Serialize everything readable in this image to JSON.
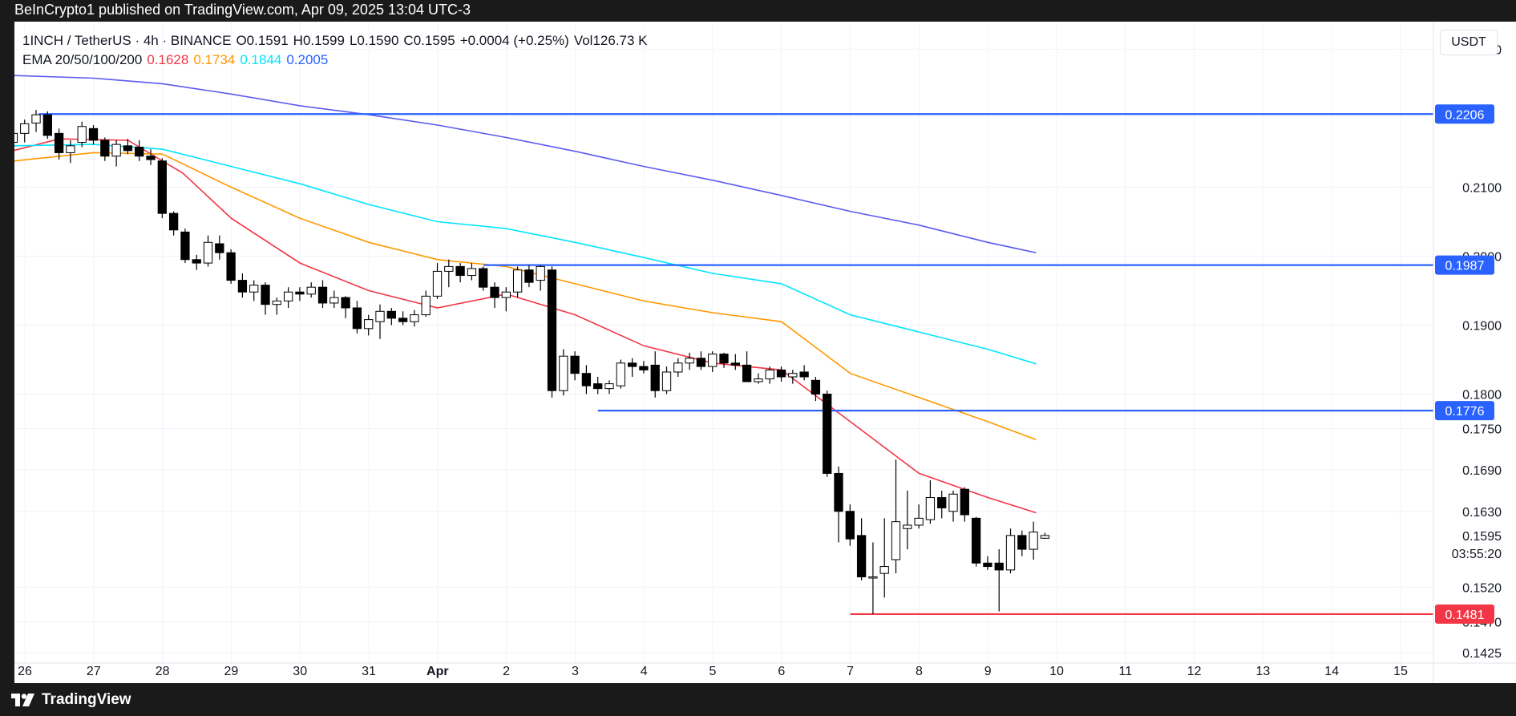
{
  "header": {
    "publisher_line": "BeInCrypto1 published on TradingView.com, Apr 09, 2025 13:04 UTC-3"
  },
  "legend": {
    "symbol": "1INCH / TetherUS · 4h · BINANCE",
    "o_label": "O",
    "o_value": "0.1591",
    "h_label": "H",
    "h_value": "0.1599",
    "l_label": "L",
    "l_value": "0.1590",
    "c_label": "C",
    "c_value": "0.1595",
    "change": "+0.0004 (+0.25%)",
    "vol_label": "Vol",
    "vol_value": "126.73 K",
    "ema_label": "EMA 20/50/100/200",
    "ema20": "0.1628",
    "ema50": "0.1734",
    "ema100": "0.1844",
    "ema200": "0.2005"
  },
  "currency_button": "USDT",
  "countdown": "03:55:20",
  "footer": {
    "brand": "TradingView"
  },
  "colors": {
    "up": "#ffffff",
    "down": "#000000",
    "ema20": "#f23645",
    "ema50": "#ff9800",
    "ema100": "#00e5ff",
    "ema200": "#5b5bf0",
    "level": "#2962ff",
    "support": "#f23645"
  },
  "chart_data": {
    "type": "candlestick",
    "y_axis": {
      "ticks": [
        0.23,
        0.21,
        0.2,
        0.19,
        0.18,
        0.175,
        0.169,
        0.163,
        0.152,
        0.147,
        0.1425
      ],
      "tick_labels": [
        "0.2300",
        "0.2100",
        "0.2000",
        "0.1900",
        "0.1800",
        "0.1750",
        "0.1690",
        "0.1630",
        "0.1520",
        "0.1470",
        "0.1425"
      ],
      "range": [
        0.141,
        0.234
      ]
    },
    "x_axis": {
      "labels": [
        "26",
        "27",
        "28",
        "29",
        "30",
        "31",
        "Apr",
        "2",
        "3",
        "4",
        "5",
        "6",
        "7",
        "8",
        "9",
        "10",
        "11",
        "12",
        "13",
        "14",
        "15"
      ],
      "label_bold": [
        false,
        false,
        false,
        false,
        false,
        false,
        true,
        false,
        false,
        false,
        false,
        false,
        false,
        false,
        false,
        false,
        false,
        false,
        false,
        false,
        false
      ],
      "day_index": [
        0,
        1,
        2,
        3,
        4,
        5,
        6,
        7,
        8,
        9,
        10,
        11,
        12,
        13,
        14,
        15,
        16,
        17,
        18,
        19,
        20
      ]
    },
    "horizontal_levels": [
      {
        "price": 0.2206,
        "label": "0.2206",
        "color": "level",
        "from_day": 0.2
      },
      {
        "price": 0.1987,
        "label": "0.1987",
        "color": "level",
        "from_day": 6.67
      },
      {
        "price": 0.1776,
        "label": "0.1776",
        "color": "level",
        "from_day": 8.33
      },
      {
        "price": 0.1481,
        "label": "0.1481",
        "color": "support",
        "from_day": 12.0
      }
    ],
    "last_price": {
      "price": 0.1595,
      "label": "0.1595"
    },
    "candles_start_day": -0.17,
    "candles_per_day": 6,
    "candles": [
      [
        0.2165,
        0.2185,
        0.2148,
        0.2178
      ],
      [
        0.2178,
        0.2198,
        0.2165,
        0.2192
      ],
      [
        0.2193,
        0.2212,
        0.218,
        0.2205
      ],
      [
        0.2205,
        0.221,
        0.217,
        0.2175
      ],
      [
        0.2178,
        0.2185,
        0.214,
        0.215
      ],
      [
        0.215,
        0.2168,
        0.2135,
        0.216
      ],
      [
        0.2165,
        0.2195,
        0.2158,
        0.2188
      ],
      [
        0.2185,
        0.219,
        0.2162,
        0.2168
      ],
      [
        0.2168,
        0.2172,
        0.2138,
        0.2145
      ],
      [
        0.2145,
        0.2168,
        0.213,
        0.2162
      ],
      [
        0.216,
        0.217,
        0.2148,
        0.2153
      ],
      [
        0.2158,
        0.2168,
        0.2138,
        0.2145
      ],
      [
        0.2145,
        0.2155,
        0.2132,
        0.214
      ],
      [
        0.2138,
        0.2142,
        0.2055,
        0.2062
      ],
      [
        0.2062,
        0.2065,
        0.203,
        0.2038
      ],
      [
        0.2035,
        0.204,
        0.199,
        0.1995
      ],
      [
        0.1995,
        0.2002,
        0.198,
        0.199
      ],
      [
        0.199,
        0.203,
        0.1985,
        0.202
      ],
      [
        0.2018,
        0.203,
        0.1995,
        0.2005
      ],
      [
        0.2005,
        0.201,
        0.196,
        0.1965
      ],
      [
        0.1965,
        0.1975,
        0.194,
        0.1948
      ],
      [
        0.1948,
        0.1965,
        0.1935,
        0.1958
      ],
      [
        0.1958,
        0.1962,
        0.1915,
        0.193
      ],
      [
        0.193,
        0.194,
        0.1915,
        0.1935
      ],
      [
        0.1935,
        0.1955,
        0.1925,
        0.1948
      ],
      [
        0.1948,
        0.1955,
        0.1935,
        0.1945
      ],
      [
        0.1945,
        0.1962,
        0.194,
        0.1955
      ],
      [
        0.1955,
        0.1965,
        0.1925,
        0.1932
      ],
      [
        0.1932,
        0.195,
        0.1925,
        0.194
      ],
      [
        0.194,
        0.1942,
        0.191,
        0.1925
      ],
      [
        0.1925,
        0.1935,
        0.1888,
        0.1895
      ],
      [
        0.1895,
        0.1915,
        0.1885,
        0.1908
      ],
      [
        0.1905,
        0.193,
        0.188,
        0.192
      ],
      [
        0.192,
        0.1925,
        0.19,
        0.191
      ],
      [
        0.191,
        0.192,
        0.19,
        0.1905
      ],
      [
        0.1905,
        0.1922,
        0.1898,
        0.1915
      ],
      [
        0.1915,
        0.195,
        0.1912,
        0.1942
      ],
      [
        0.1942,
        0.199,
        0.1938,
        0.1978
      ],
      [
        0.1978,
        0.1995,
        0.1955,
        0.1985
      ],
      [
        0.1985,
        0.199,
        0.1962,
        0.1972
      ],
      [
        0.1972,
        0.199,
        0.1965,
        0.1982
      ],
      [
        0.1982,
        0.1985,
        0.195,
        0.1955
      ],
      [
        0.1955,
        0.1962,
        0.1925,
        0.194
      ],
      [
        0.194,
        0.1955,
        0.192,
        0.1948
      ],
      [
        0.1948,
        0.1985,
        0.194,
        0.198
      ],
      [
        0.198,
        0.1987,
        0.1955,
        0.1962
      ],
      [
        0.1965,
        0.1987,
        0.195,
        0.1985
      ],
      [
        0.198,
        0.1985,
        0.1795,
        0.1805
      ],
      [
        0.1805,
        0.1865,
        0.1798,
        0.1855
      ],
      [
        0.1855,
        0.1862,
        0.182,
        0.183
      ],
      [
        0.183,
        0.1842,
        0.18,
        0.1812
      ],
      [
        0.1815,
        0.1825,
        0.18,
        0.1808
      ],
      [
        0.1808,
        0.182,
        0.18,
        0.1815
      ],
      [
        0.1812,
        0.185,
        0.1808,
        0.1845
      ],
      [
        0.1845,
        0.1852,
        0.1825,
        0.184
      ],
      [
        0.184,
        0.1848,
        0.183,
        0.1835
      ],
      [
        0.1842,
        0.1862,
        0.1795,
        0.1805
      ],
      [
        0.1805,
        0.184,
        0.18,
        0.1832
      ],
      [
        0.1832,
        0.1852,
        0.1825,
        0.1845
      ],
      [
        0.1845,
        0.186,
        0.1835,
        0.1852
      ],
      [
        0.1852,
        0.1862,
        0.1835,
        0.184
      ],
      [
        0.184,
        0.1862,
        0.1832,
        0.1858
      ],
      [
        0.1858,
        0.186,
        0.1838,
        0.1845
      ],
      [
        0.1845,
        0.1858,
        0.1835,
        0.1842
      ],
      [
        0.1842,
        0.1862,
        0.1822,
        0.1818
      ],
      [
        0.1818,
        0.183,
        0.1815,
        0.1822
      ],
      [
        0.1822,
        0.184,
        0.1815,
        0.1835
      ],
      [
        0.1835,
        0.184,
        0.1818,
        0.1825
      ],
      [
        0.1825,
        0.1835,
        0.1815,
        0.183
      ],
      [
        0.1832,
        0.1842,
        0.182,
        0.1825
      ],
      [
        0.182,
        0.1825,
        0.179,
        0.18
      ],
      [
        0.18,
        0.1805,
        0.168,
        0.1685
      ],
      [
        0.1685,
        0.1695,
        0.1585,
        0.163
      ],
      [
        0.163,
        0.164,
        0.158,
        0.159
      ],
      [
        0.1595,
        0.162,
        0.153,
        0.1535
      ],
      [
        0.1535,
        0.1585,
        0.1481,
        0.1535
      ],
      [
        0.154,
        0.162,
        0.1505,
        0.155
      ],
      [
        0.156,
        0.1705,
        0.154,
        0.1615
      ],
      [
        0.1605,
        0.166,
        0.1575,
        0.161
      ],
      [
        0.161,
        0.164,
        0.1605,
        0.162
      ],
      [
        0.1618,
        0.1675,
        0.1612,
        0.165
      ],
      [
        0.165,
        0.166,
        0.162,
        0.1635
      ],
      [
        0.163,
        0.166,
        0.1615,
        0.1655
      ],
      [
        0.1662,
        0.1665,
        0.1615,
        0.1625
      ],
      [
        0.162,
        0.1622,
        0.155,
        0.1555
      ],
      [
        0.1555,
        0.1565,
        0.1545,
        0.155
      ],
      [
        0.1555,
        0.1575,
        0.1485,
        0.1545
      ],
      [
        0.1545,
        0.1605,
        0.154,
        0.1595
      ],
      [
        0.1595,
        0.1602,
        0.1565,
        0.1575
      ],
      [
        0.1575,
        0.1615,
        0.156,
        0.16
      ],
      [
        0.1591,
        0.1599,
        0.159,
        0.1595
      ]
    ],
    "ema_series": [
      {
        "name": "EMA 20",
        "color": "ema20",
        "points": [
          [
            -0.17,
            0.2153
          ],
          [
            0.5,
            0.217
          ],
          [
            1.5,
            0.2168
          ],
          [
            2.3,
            0.212
          ],
          [
            3.0,
            0.2055
          ],
          [
            4.0,
            0.199
          ],
          [
            5.0,
            0.195
          ],
          [
            6.0,
            0.1925
          ],
          [
            7.0,
            0.1945
          ],
          [
            8.0,
            0.1915
          ],
          [
            9.0,
            0.187
          ],
          [
            10.0,
            0.1845
          ],
          [
            11.0,
            0.1835
          ],
          [
            12.0,
            0.176
          ],
          [
            13.0,
            0.1685
          ],
          [
            14.0,
            0.165
          ],
          [
            14.7,
            0.1628
          ]
        ]
      },
      {
        "name": "EMA 50",
        "color": "ema50",
        "points": [
          [
            -0.17,
            0.2138
          ],
          [
            1.0,
            0.215
          ],
          [
            2.0,
            0.2148
          ],
          [
            3.0,
            0.21
          ],
          [
            4.0,
            0.2055
          ],
          [
            5.0,
            0.202
          ],
          [
            6.0,
            0.1995
          ],
          [
            7.0,
            0.1985
          ],
          [
            8.0,
            0.196
          ],
          [
            9.0,
            0.1935
          ],
          [
            10.0,
            0.1918
          ],
          [
            11.0,
            0.1905
          ],
          [
            12.0,
            0.183
          ],
          [
            13.0,
            0.1795
          ],
          [
            14.0,
            0.176
          ],
          [
            14.7,
            0.1734
          ]
        ]
      },
      {
        "name": "EMA 100",
        "color": "ema100",
        "points": [
          [
            -0.17,
            0.216
          ],
          [
            1.0,
            0.2162
          ],
          [
            2.0,
            0.2155
          ],
          [
            3.0,
            0.213
          ],
          [
            4.0,
            0.2105
          ],
          [
            5.0,
            0.2075
          ],
          [
            6.0,
            0.205
          ],
          [
            7.0,
            0.204
          ],
          [
            8.0,
            0.202
          ],
          [
            9.0,
            0.1998
          ],
          [
            10.0,
            0.1975
          ],
          [
            11.0,
            0.196
          ],
          [
            12.0,
            0.1915
          ],
          [
            13.0,
            0.189
          ],
          [
            14.0,
            0.1865
          ],
          [
            14.7,
            0.1844
          ]
        ]
      },
      {
        "name": "EMA 200",
        "color": "ema200",
        "points": [
          [
            -0.17,
            0.2262
          ],
          [
            1.0,
            0.2258
          ],
          [
            2.0,
            0.225
          ],
          [
            3.0,
            0.2235
          ],
          [
            4.0,
            0.2218
          ],
          [
            5.0,
            0.2205
          ],
          [
            6.0,
            0.219
          ],
          [
            7.0,
            0.2172
          ],
          [
            8.0,
            0.2152
          ],
          [
            9.0,
            0.213
          ],
          [
            10.0,
            0.211
          ],
          [
            11.0,
            0.2088
          ],
          [
            12.0,
            0.2065
          ],
          [
            13.0,
            0.2045
          ],
          [
            14.0,
            0.202
          ],
          [
            14.7,
            0.2005
          ]
        ]
      }
    ]
  }
}
